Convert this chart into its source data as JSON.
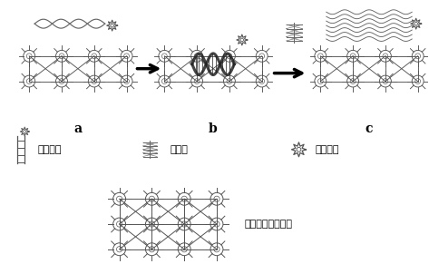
{
  "bg_color": "#ffffff",
  "fig_width": 4.73,
  "fig_height": 2.91,
  "dpi": 100,
  "label_a": "a",
  "label_b": "b",
  "label_c": "c",
  "legend_aptamer": "核酸适体",
  "legend_bacteria": "目标菌",
  "legend_probe": "荧光探针",
  "legend_mof": "金属有机骨架材料",
  "text_color": "#000000",
  "font_size_abc": 10,
  "font_size_legend": 8
}
